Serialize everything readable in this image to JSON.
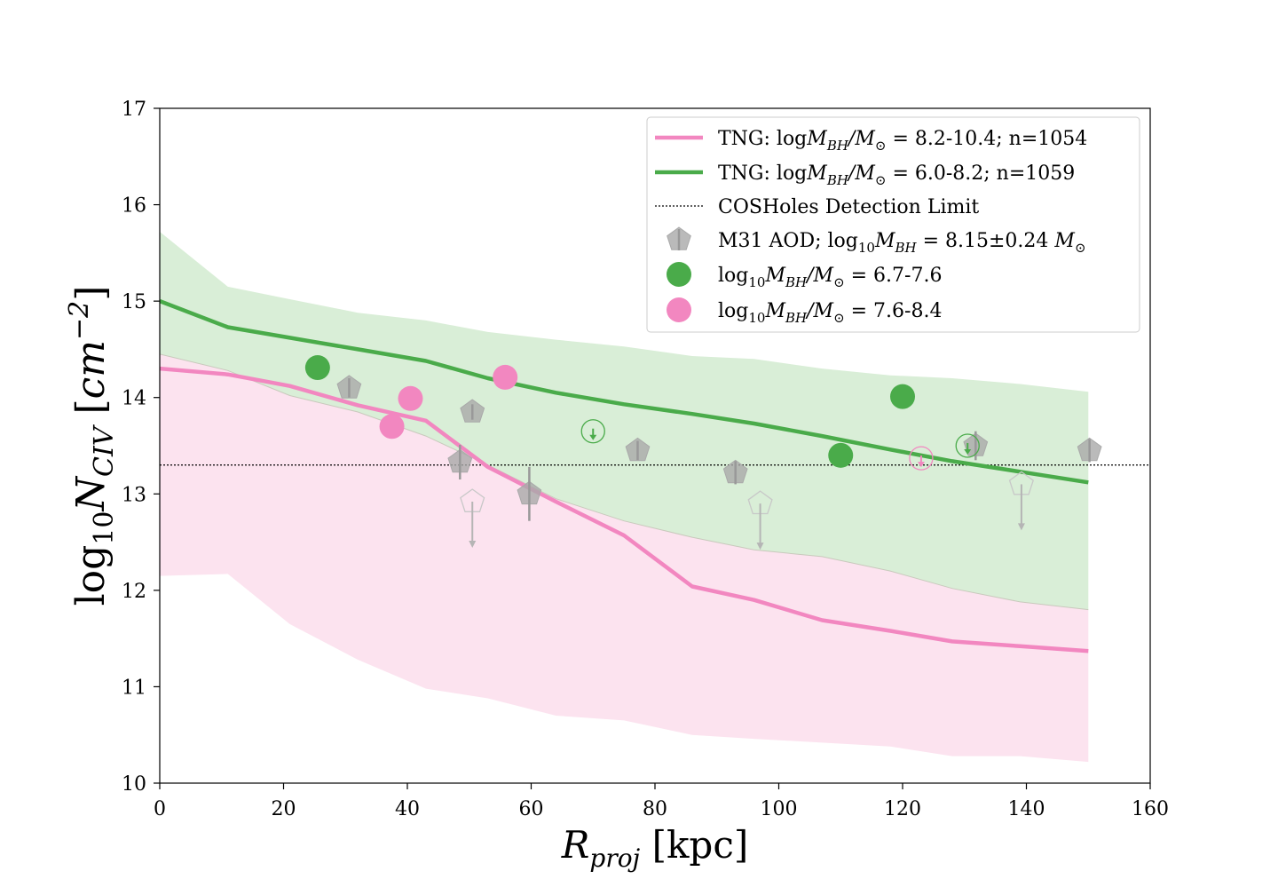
{
  "chart_data": {
    "type": "line",
    "xlim": [
      0,
      160
    ],
    "ylim": [
      10,
      17
    ],
    "x_ticks": [
      "0",
      "20",
      "40",
      "60",
      "80",
      "100",
      "120",
      "140",
      "160"
    ],
    "y_ticks": [
      "10",
      "11",
      "12",
      "13",
      "14",
      "15",
      "16",
      "17"
    ],
    "xlabel": {
      "main": "R",
      "sub": "proj",
      "unit": " [kpc]"
    },
    "ylabel": {
      "prefix": "log",
      "prefix_sub": "10",
      "main": "N",
      "sub": "CIV",
      "unit_open": " [",
      "unit": "cm",
      "unit_sup": "−2",
      "unit_close": "]"
    },
    "grid": false,
    "legend_position": "top-right",
    "detection_limit": 13.3,
    "colors": {
      "pink": "#f287c0",
      "green": "#4aab4a",
      "pink_band": "#fce3ef",
      "green_band": "#d9eed7",
      "overlap_band": "#d8d9cf",
      "gray": "#a9a9a9"
    },
    "series": [
      {
        "name": "TNG: logM_BH/M_⊙ = 8.2-10.4; n=1054",
        "color": "#f287c0",
        "x": [
          0,
          11,
          21,
          32,
          43,
          53,
          64,
          75,
          86,
          96,
          107,
          118,
          128,
          139,
          150
        ],
        "median": [
          14.3,
          14.24,
          14.12,
          13.92,
          13.76,
          13.28,
          12.92,
          12.57,
          12.04,
          11.9,
          11.69,
          11.58,
          11.47,
          11.42,
          11.37
        ],
        "lower": [
          12.15,
          12.17,
          11.65,
          11.28,
          10.98,
          10.88,
          10.7,
          10.65,
          10.5,
          10.46,
          10.42,
          10.38,
          10.28,
          10.28,
          10.22
        ],
        "upper": [
          14.45,
          14.28,
          14.02,
          13.85,
          13.6,
          13.3,
          12.95,
          12.72,
          12.55,
          12.42,
          12.35,
          12.2,
          12.02,
          11.88,
          11.8
        ]
      },
      {
        "name": "TNG: logM_BH/M_⊙ = 6.0-8.2; n=1059",
        "color": "#4aab4a",
        "x": [
          0,
          11,
          21,
          32,
          43,
          53,
          64,
          75,
          86,
          96,
          107,
          118,
          128,
          139,
          150
        ],
        "median": [
          15.0,
          14.73,
          14.62,
          14.5,
          14.38,
          14.2,
          14.05,
          13.93,
          13.83,
          13.73,
          13.6,
          13.46,
          13.34,
          13.23,
          13.12
        ],
        "lower": [
          14.45,
          14.28,
          14.02,
          13.85,
          13.6,
          13.3,
          12.95,
          12.72,
          12.55,
          12.42,
          12.35,
          12.2,
          12.02,
          11.88,
          11.8
        ],
        "upper": [
          15.72,
          15.15,
          15.02,
          14.88,
          14.8,
          14.68,
          14.6,
          14.53,
          14.43,
          14.4,
          14.3,
          14.23,
          14.2,
          14.14,
          14.06
        ]
      }
    ],
    "m31_detections": [
      {
        "x": 30.6,
        "y": 14.1,
        "err": 0.1
      },
      {
        "x": 50.5,
        "y": 13.85,
        "err": 0.08
      },
      {
        "x": 48.5,
        "y": 13.33,
        "err": 0.18
      },
      {
        "x": 59.7,
        "y": 13.0,
        "err": 0.28
      },
      {
        "x": 77.2,
        "y": 13.45,
        "err": 0.1
      },
      {
        "x": 93.0,
        "y": 13.22,
        "err": 0.12
      },
      {
        "x": 131.8,
        "y": 13.5,
        "err": 0.15
      },
      {
        "x": 150.2,
        "y": 13.45,
        "err": 0.12
      }
    ],
    "m31_upper_limits": [
      {
        "x": 50.5,
        "y": 12.92
      },
      {
        "x": 97.0,
        "y": 12.9
      },
      {
        "x": 139.2,
        "y": 13.1
      }
    ],
    "green_points": [
      {
        "x": 25.5,
        "y": 14.31
      },
      {
        "x": 110.0,
        "y": 13.4
      },
      {
        "x": 120.0,
        "y": 14.01
      }
    ],
    "pink_points": [
      {
        "x": 37.5,
        "y": 13.7
      },
      {
        "x": 40.5,
        "y": 13.99
      },
      {
        "x": 55.8,
        "y": 14.21
      }
    ],
    "green_upper_limits": [
      {
        "x": 70.0,
        "y": 13.65
      },
      {
        "x": 130.5,
        "y": 13.5
      }
    ],
    "pink_upper_limits": [
      {
        "x": 123.0,
        "y": 13.37
      }
    ],
    "legend": [
      {
        "kind": "line",
        "color": "#f287c0",
        "prefix": "TNG: log",
        "main": "M",
        "sub": "BH",
        "slash": "/M",
        "sun": "⊙",
        "suffix": " = 8.2-10.4; n=1054"
      },
      {
        "kind": "line",
        "color": "#4aab4a",
        "prefix": "TNG: log",
        "main": "M",
        "sub": "BH",
        "slash": "/M",
        "sun": "⊙",
        "suffix": " = 6.0-8.2; n=1059"
      },
      {
        "kind": "dotted",
        "color": "#000000",
        "text": "COSHoles Detection Limit"
      },
      {
        "kind": "pentagon",
        "color": "#a9a9a9",
        "prefix": "M31 AOD; log",
        "prefix_sub": "10",
        "main": "M",
        "sub": "BH",
        "suffix": " = 8.15±0.24 ",
        "unit": "M",
        "unit_sub": "⊙"
      },
      {
        "kind": "circle",
        "color": "#4aab4a",
        "prefix": "log",
        "prefix_sub": "10",
        "main": "M",
        "sub": "BH",
        "slash": "/M",
        "sun": "⊙",
        "suffix": " = 6.7-7.6"
      },
      {
        "kind": "circle",
        "color": "#f287c0",
        "prefix": "log",
        "prefix_sub": "10",
        "main": "M",
        "sub": "BH",
        "slash": "/M",
        "sun": "⊙",
        "suffix": " = 7.6-8.4"
      }
    ]
  }
}
